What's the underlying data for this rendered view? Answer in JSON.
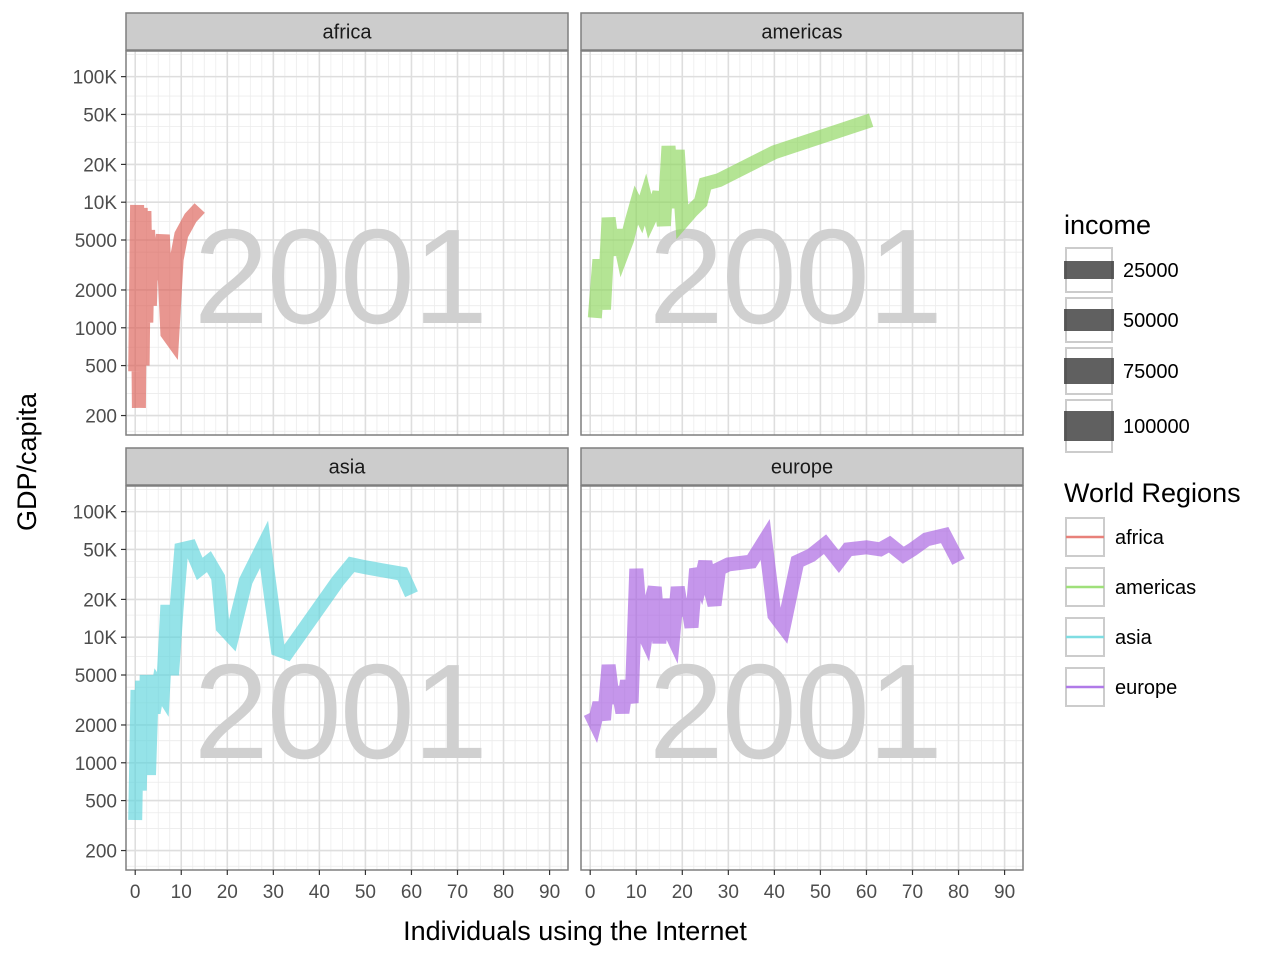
{
  "chart_data": {
    "type": "line",
    "title": "",
    "xlabel": "Individuals using the Internet",
    "ylabel": "GDP/capita",
    "watermark": "2001",
    "x_scale": "linear",
    "y_scale": "log10",
    "xlim": [
      -2,
      94
    ],
    "ylim": [
      140,
      160000
    ],
    "x_ticks": [
      0,
      10,
      20,
      30,
      40,
      50,
      60,
      70,
      80,
      90
    ],
    "y_ticks": [
      {
        "value": 200,
        "label": "200"
      },
      {
        "value": 500,
        "label": "500"
      },
      {
        "value": 1000,
        "label": "1000"
      },
      {
        "value": 2000,
        "label": "2000"
      },
      {
        "value": 5000,
        "label": "5000"
      },
      {
        "value": 10000,
        "label": "10K"
      },
      {
        "value": 20000,
        "label": "20K"
      },
      {
        "value": 50000,
        "label": "50K"
      },
      {
        "value": 100000,
        "label": "100K"
      }
    ],
    "grid": true,
    "legend_position": "right",
    "legend": {
      "income": {
        "title": "income",
        "entries": [
          {
            "label": "25000",
            "value": 25000
          },
          {
            "label": "50000",
            "value": 50000
          },
          {
            "label": "75000",
            "value": 75000
          },
          {
            "label": "100000",
            "value": 100000
          }
        ]
      },
      "regions": {
        "title": "World Regions",
        "entries": [
          {
            "label": "africa",
            "color": "#e8817a"
          },
          {
            "label": "americas",
            "color": "#9fe07a"
          },
          {
            "label": "asia",
            "color": "#7fdde2"
          },
          {
            "label": "europe",
            "color": "#b07ae8"
          }
        ]
      }
    },
    "series": [
      {
        "name": "africa",
        "color": "#dc5e55",
        "points": [
          [
            0,
            450
          ],
          [
            0.4,
            9500
          ],
          [
            0.8,
            230
          ],
          [
            1.2,
            9000
          ],
          [
            1.6,
            500
          ],
          [
            2,
            8500
          ],
          [
            2.4,
            1100
          ],
          [
            2.8,
            6000
          ],
          [
            3.2,
            1500
          ],
          [
            3.6,
            5000
          ],
          [
            4,
            2500
          ],
          [
            5,
            3000
          ],
          [
            6,
            5500
          ],
          [
            7,
            900
          ],
          [
            8,
            800
          ],
          [
            9,
            3500
          ],
          [
            10,
            5500
          ],
          [
            12,
            7500
          ],
          [
            14,
            9000
          ]
        ]
      },
      {
        "name": "americas",
        "color": "#8cd65a",
        "points": [
          [
            1,
            1200
          ],
          [
            2,
            3500
          ],
          [
            3,
            1400
          ],
          [
            4,
            7500
          ],
          [
            5,
            3800
          ],
          [
            6,
            6000
          ],
          [
            7,
            4000
          ],
          [
            8,
            5000
          ],
          [
            9,
            7000
          ],
          [
            10,
            9500
          ],
          [
            11,
            8000
          ],
          [
            12,
            10500
          ],
          [
            13,
            7500
          ],
          [
            14,
            9000
          ],
          [
            15,
            12000
          ],
          [
            16,
            6500
          ],
          [
            17,
            28000
          ],
          [
            18,
            9000
          ],
          [
            19,
            26000
          ],
          [
            20,
            7000
          ],
          [
            22,
            8500
          ],
          [
            24,
            10000
          ],
          [
            25,
            14000
          ],
          [
            28,
            15000
          ],
          [
            40,
            25000
          ],
          [
            55,
            38000
          ],
          [
            61,
            45000
          ]
        ]
      },
      {
        "name": "asia",
        "color": "#5cd4db",
        "points": [
          [
            0,
            350
          ],
          [
            0.5,
            3800
          ],
          [
            1,
            600
          ],
          [
            1.5,
            4500
          ],
          [
            2,
            1000
          ],
          [
            2.5,
            5000
          ],
          [
            3,
            800
          ],
          [
            3.5,
            3000
          ],
          [
            4,
            2500
          ],
          [
            5,
            4000
          ],
          [
            6,
            3500
          ],
          [
            7,
            18000
          ],
          [
            8,
            5000
          ],
          [
            9,
            17000
          ],
          [
            10,
            50000
          ],
          [
            12,
            52000
          ],
          [
            14,
            35000
          ],
          [
            16,
            40000
          ],
          [
            18,
            30000
          ],
          [
            19,
            12000
          ],
          [
            21,
            10000
          ],
          [
            24,
            28000
          ],
          [
            28,
            55000
          ],
          [
            31,
            8000
          ],
          [
            33,
            7500
          ],
          [
            44,
            28000
          ],
          [
            47,
            38000
          ],
          [
            50,
            36000
          ],
          [
            58,
            32000
          ],
          [
            60,
            22000
          ]
        ]
      },
      {
        "name": "europe",
        "color": "#a65ee0",
        "points": [
          [
            0,
            2500
          ],
          [
            1,
            2100
          ],
          [
            2,
            3000
          ],
          [
            3,
            2200
          ],
          [
            4,
            6000
          ],
          [
            5,
            3000
          ],
          [
            6,
            4000
          ],
          [
            7,
            2500
          ],
          [
            8,
            4500
          ],
          [
            9,
            3000
          ],
          [
            10,
            35000
          ],
          [
            11,
            12000
          ],
          [
            12,
            10000
          ],
          [
            13,
            18000
          ],
          [
            14,
            25000
          ],
          [
            15,
            9000
          ],
          [
            16,
            20000
          ],
          [
            17,
            12000
          ],
          [
            18,
            10000
          ],
          [
            19,
            25000
          ],
          [
            20,
            15000
          ],
          [
            21,
            20000
          ],
          [
            22,
            12000
          ],
          [
            23,
            35000
          ],
          [
            24,
            28000
          ],
          [
            25,
            40000
          ],
          [
            26,
            25000
          ],
          [
            27,
            18000
          ],
          [
            28,
            35000
          ],
          [
            30,
            38000
          ],
          [
            35,
            40000
          ],
          [
            38,
            60000
          ],
          [
            40,
            15000
          ],
          [
            42,
            12000
          ],
          [
            45,
            40000
          ],
          [
            48,
            45000
          ],
          [
            51,
            55000
          ],
          [
            54,
            40000
          ],
          [
            56,
            50000
          ],
          [
            60,
            52000
          ],
          [
            63,
            50000
          ],
          [
            65,
            55000
          ],
          [
            68,
            45000
          ],
          [
            70,
            50000
          ],
          [
            73,
            60000
          ],
          [
            77,
            65000
          ],
          [
            80,
            40000
          ]
        ]
      }
    ]
  }
}
